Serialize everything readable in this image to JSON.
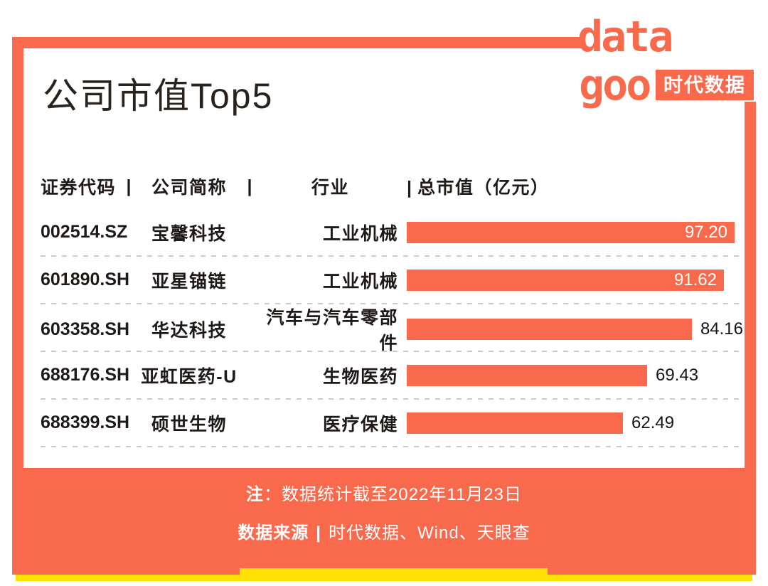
{
  "page": {
    "title": "公司市值Top5"
  },
  "logo": {
    "word_top": "data",
    "word_bottom": "goo",
    "badge": "时代数据"
  },
  "table": {
    "separator": "|",
    "headers": {
      "code": "证券代码",
      "company": "公司简称",
      "industry": "行业",
      "value": "总市值（亿元）"
    },
    "rows": [
      {
        "code": "002514.SZ",
        "company": "宝馨科技",
        "industry": "工业机械",
        "value": "97.20"
      },
      {
        "code": "601890.SH",
        "company": "亚星锚链",
        "industry": "工业机械",
        "value": "91.62"
      },
      {
        "code": "603358.SH",
        "company": "华达科技",
        "industry": "汽车与汽车零部件",
        "value": "84.16"
      },
      {
        "code": "688176.SH",
        "company": "亚虹医药-U",
        "industry": "生物医药",
        "value": "69.43"
      },
      {
        "code": "688399.SH",
        "company": "硕世生物",
        "industry": "医疗保健",
        "value": "62.49"
      }
    ]
  },
  "footer": {
    "note_label": "注",
    "note_text": "：数据统计截至2022年11月23日",
    "source_label": "数据来源",
    "source_separator": "|",
    "source_text": "时代数据、Wind、天眼查"
  },
  "colors": {
    "accent": "#F9694C",
    "highlight_yellow": "#FFE003",
    "divider": "#CBCBCB",
    "text": "#1F1A17",
    "bar_label_inside": "#FFFFFF"
  },
  "chart_data": {
    "type": "bar",
    "orientation": "horizontal",
    "title": "公司市值Top5",
    "value_label": "总市值（亿元）",
    "categories": [
      "宝馨科技",
      "亚星锚链",
      "华达科技",
      "亚虹医药-U",
      "硕世生物"
    ],
    "values": [
      97.2,
      91.62,
      84.16,
      69.43,
      62.49
    ],
    "codes": [
      "002514.SZ",
      "601890.SH",
      "603358.SH",
      "688176.SH",
      "688399.SH"
    ],
    "industries": [
      "工业机械",
      "工业机械",
      "汽车与汽车零部件",
      "生物医药",
      "医疗保健"
    ],
    "xlim": [
      0,
      97.2
    ],
    "grid": false,
    "legend": false,
    "note": "数据统计截至2022年11月23日",
    "sources": [
      "时代数据",
      "Wind",
      "天眼查"
    ]
  }
}
